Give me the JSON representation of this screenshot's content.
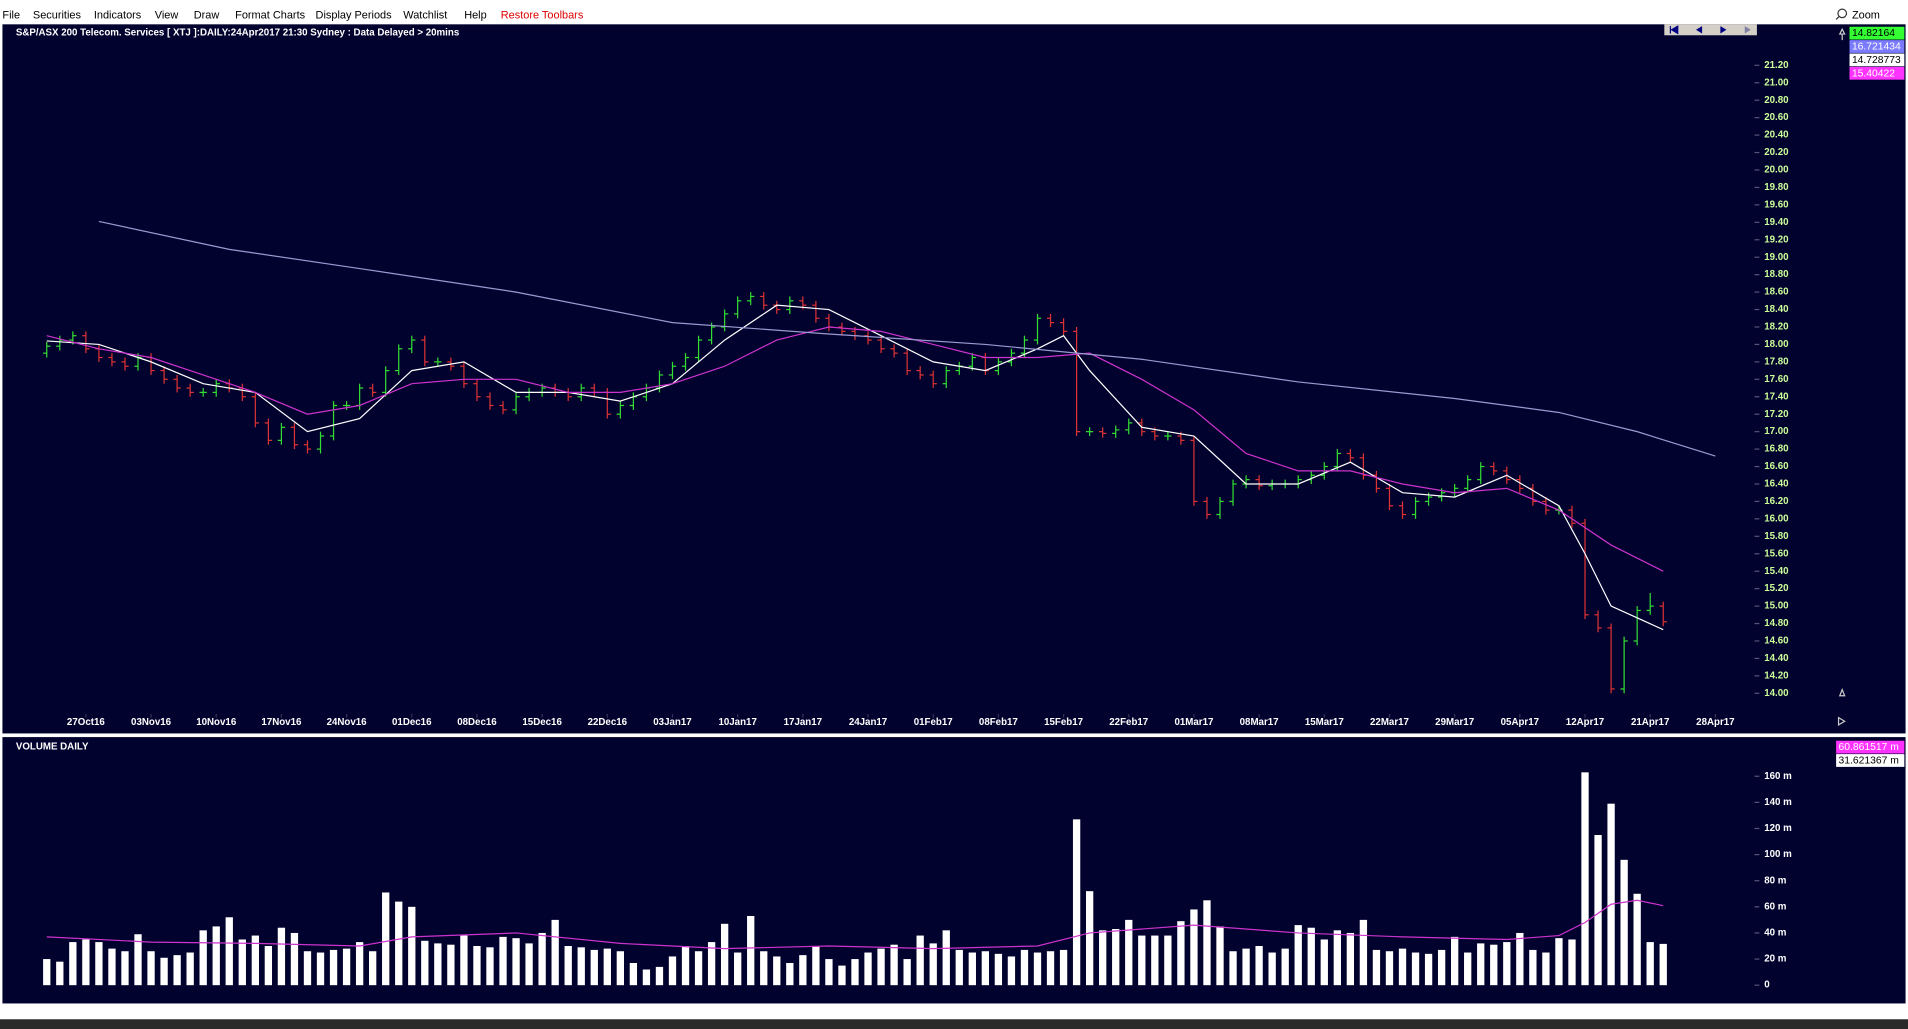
{
  "menu": [
    "File",
    "Securities",
    "Indicators",
    "View",
    "Draw",
    "Format Charts",
    "Display Periods",
    "Watchlist",
    "Help"
  ],
  "restore_toolbars": "Restore Toolbars",
  "zoom": "Zoom",
  "chart_data": [
    {
      "type": "ohlc",
      "title": "S&P/ASX 200 Telecom. Services [ XTJ ]:DAILY:24Apr2017 21:30 Sydney : Data Delayed > 20mins",
      "up_color": "#33dd33",
      "down_color": "#dd3333",
      "open": [
        17.9,
        17.98,
        18.05,
        18.1,
        17.95,
        17.85,
        17.8,
        17.75,
        17.85,
        17.7,
        17.6,
        17.5,
        17.45,
        17.45,
        17.55,
        17.5,
        17.4,
        17.1,
        16.9,
        17.05,
        16.85,
        16.8,
        16.95,
        17.3,
        17.3,
        17.5,
        17.45,
        17.7,
        17.95,
        18.05,
        17.8,
        17.8,
        17.75,
        17.55,
        17.4,
        17.3,
        17.25,
        17.4,
        17.45,
        17.5,
        17.45,
        17.4,
        17.5,
        17.45,
        17.2,
        17.3,
        17.4,
        17.5,
        17.65,
        17.75,
        17.85,
        18.05,
        18.2,
        18.35,
        18.5,
        18.55,
        18.45,
        18.4,
        18.5,
        18.45,
        18.3,
        18.2,
        18.15,
        18.1,
        18.05,
        17.95,
        17.9,
        17.7,
        17.65,
        17.55,
        17.7,
        17.75,
        17.85,
        17.7,
        17.8,
        17.9,
        18.05,
        18.3,
        18.25,
        18.15,
        17.0,
        17.0,
        16.98,
        17.02,
        17.1,
        17.0,
        16.95,
        16.95,
        16.9,
        16.2,
        16.05,
        16.2,
        16.4,
        16.45,
        16.38,
        16.4,
        16.4,
        16.45,
        16.5,
        16.6,
        16.75,
        16.7,
        16.5,
        16.35,
        16.15,
        16.05,
        16.2,
        16.25,
        16.3,
        16.35,
        16.45,
        16.6,
        16.55,
        16.45,
        16.35,
        16.2,
        16.1,
        16.1,
        15.95,
        14.9,
        14.75,
        14.05,
        14.6,
        14.95,
        15.0
      ],
      "high": [
        18.03,
        18.1,
        18.15,
        18.15,
        18.0,
        17.9,
        17.85,
        17.9,
        17.9,
        17.75,
        17.65,
        17.55,
        17.5,
        17.6,
        17.6,
        17.55,
        17.45,
        17.15,
        17.1,
        17.1,
        16.9,
        17.0,
        17.35,
        17.35,
        17.55,
        17.55,
        17.75,
        18.0,
        18.1,
        18.1,
        17.85,
        17.85,
        17.8,
        17.6,
        17.45,
        17.35,
        17.45,
        17.5,
        17.55,
        17.55,
        17.5,
        17.55,
        17.55,
        17.5,
        17.35,
        17.45,
        17.55,
        17.7,
        17.8,
        17.9,
        18.1,
        18.25,
        18.4,
        18.55,
        18.6,
        18.6,
        18.5,
        18.55,
        18.55,
        18.5,
        18.35,
        18.25,
        18.2,
        18.15,
        18.1,
        18.0,
        17.95,
        17.75,
        17.7,
        17.75,
        17.8,
        17.9,
        17.9,
        17.85,
        17.95,
        18.1,
        18.35,
        18.35,
        18.3,
        18.2,
        17.05,
        17.05,
        17.07,
        17.15,
        17.15,
        17.05,
        17.0,
        17.0,
        16.95,
        16.25,
        16.25,
        16.45,
        16.5,
        16.5,
        16.45,
        16.45,
        16.5,
        16.55,
        16.65,
        16.8,
        16.8,
        16.75,
        16.55,
        16.4,
        16.2,
        16.25,
        16.3,
        16.35,
        16.4,
        16.5,
        16.65,
        16.65,
        16.6,
        16.5,
        16.4,
        16.25,
        16.15,
        16.15,
        16.0,
        14.95,
        14.8,
        14.65,
        15.0,
        15.15,
        15.05
      ],
      "low": [
        17.85,
        17.93,
        18.0,
        17.9,
        17.8,
        17.75,
        17.7,
        17.7,
        17.65,
        17.55,
        17.45,
        17.4,
        17.4,
        17.4,
        17.45,
        17.35,
        17.05,
        16.85,
        16.85,
        16.8,
        16.75,
        16.75,
        16.9,
        17.25,
        17.25,
        17.4,
        17.4,
        17.65,
        17.9,
        17.75,
        17.75,
        17.7,
        17.5,
        17.35,
        17.25,
        17.2,
        17.2,
        17.35,
        17.4,
        17.4,
        17.35,
        17.35,
        17.4,
        17.15,
        17.15,
        17.25,
        17.35,
        17.45,
        17.6,
        17.7,
        17.8,
        18.0,
        18.15,
        18.3,
        18.45,
        18.4,
        18.35,
        18.35,
        18.4,
        18.25,
        18.15,
        18.1,
        18.05,
        18.0,
        17.9,
        17.85,
        17.65,
        17.6,
        17.5,
        17.5,
        17.65,
        17.7,
        17.65,
        17.65,
        17.75,
        17.85,
        18.0,
        18.2,
        18.1,
        16.95,
        16.95,
        16.93,
        16.93,
        16.97,
        16.95,
        16.9,
        16.9,
        16.85,
        16.15,
        16.0,
        16.0,
        16.15,
        16.35,
        16.33,
        16.33,
        16.35,
        16.35,
        16.4,
        16.45,
        16.55,
        16.65,
        16.45,
        16.3,
        16.1,
        16.0,
        16.0,
        16.15,
        16.2,
        16.25,
        16.3,
        16.4,
        16.5,
        16.4,
        16.3,
        16.15,
        16.05,
        16.05,
        15.9,
        14.85,
        14.7,
        14.0,
        14.0,
        14.55,
        14.9,
        14.77
      ],
      "close": [
        17.98,
        18.05,
        18.1,
        17.95,
        17.85,
        17.8,
        17.75,
        17.85,
        17.7,
        17.6,
        17.5,
        17.45,
        17.45,
        17.55,
        17.5,
        17.4,
        17.1,
        16.9,
        17.05,
        16.85,
        16.8,
        16.95,
        17.3,
        17.3,
        17.5,
        17.45,
        17.7,
        17.95,
        18.05,
        17.8,
        17.8,
        17.75,
        17.55,
        17.4,
        17.3,
        17.25,
        17.4,
        17.45,
        17.5,
        17.45,
        17.4,
        17.5,
        17.45,
        17.2,
        17.3,
        17.4,
        17.5,
        17.65,
        17.75,
        17.85,
        18.05,
        18.2,
        18.35,
        18.5,
        18.55,
        18.45,
        18.4,
        18.5,
        18.45,
        18.3,
        18.2,
        18.15,
        18.1,
        18.05,
        17.95,
        17.9,
        17.7,
        17.65,
        17.55,
        17.7,
        17.75,
        17.85,
        17.7,
        17.8,
        17.9,
        18.05,
        18.3,
        18.25,
        18.15,
        17.0,
        17.0,
        16.98,
        17.02,
        17.1,
        17.0,
        16.95,
        16.95,
        16.9,
        16.2,
        16.05,
        16.2,
        16.4,
        16.45,
        16.38,
        16.4,
        16.4,
        16.45,
        16.5,
        16.6,
        16.75,
        16.7,
        16.5,
        16.35,
        16.15,
        16.05,
        16.2,
        16.25,
        16.3,
        16.35,
        16.45,
        16.6,
        16.55,
        16.45,
        16.35,
        16.2,
        16.1,
        16.1,
        15.95,
        14.9,
        14.75,
        14.05,
        14.6,
        14.95,
        15.0,
        14.82
      ],
      "series": [
        {
          "color": "#ffffff",
          "x": [
            0,
            4,
            8,
            12,
            16,
            20,
            24,
            28,
            32,
            36,
            40,
            44,
            48,
            52,
            56,
            60,
            64,
            68,
            72,
            76,
            78,
            80,
            84,
            88,
            92,
            96,
            100,
            104,
            108,
            112,
            116,
            118,
            120,
            124
          ],
          "values": [
            18.04,
            18.0,
            17.8,
            17.55,
            17.45,
            17.0,
            17.15,
            17.7,
            17.8,
            17.45,
            17.45,
            17.35,
            17.55,
            18.05,
            18.45,
            18.4,
            18.1,
            17.8,
            17.7,
            17.95,
            18.1,
            17.7,
            17.05,
            16.95,
            16.4,
            16.4,
            16.65,
            16.3,
            16.25,
            16.5,
            16.15,
            15.6,
            15.0,
            14.73
          ]
        },
        {
          "color": "#cc33cc",
          "x": [
            0,
            4,
            8,
            12,
            16,
            20,
            24,
            28,
            32,
            36,
            40,
            44,
            48,
            52,
            56,
            60,
            64,
            68,
            72,
            76,
            80,
            84,
            88,
            92,
            96,
            100,
            104,
            108,
            112,
            116,
            120,
            124
          ],
          "values": [
            18.1,
            17.95,
            17.85,
            17.65,
            17.45,
            17.2,
            17.3,
            17.55,
            17.6,
            17.6,
            17.45,
            17.45,
            17.55,
            17.75,
            18.05,
            18.2,
            18.15,
            18.0,
            17.85,
            17.85,
            17.9,
            17.6,
            17.25,
            16.75,
            16.55,
            16.55,
            16.4,
            16.3,
            16.35,
            16.1,
            15.7,
            15.4
          ]
        },
        {
          "color": "#9a9ad0",
          "x": [
            4,
            14,
            24,
            36,
            48,
            60,
            72,
            84,
            96,
            108,
            116,
            122,
            128
          ],
          "values": [
            19.41,
            19.09,
            18.87,
            18.6,
            18.25,
            18.12,
            18.0,
            17.83,
            17.57,
            17.38,
            17.22,
            17.0,
            16.72
          ]
        }
      ],
      "readouts": [
        {
          "value": 14.82164,
          "color": "#33ff33",
          "text_color": "#000000"
        },
        {
          "value": 16.721434,
          "color": "#7b7bff",
          "text_color": "#ffffff"
        },
        {
          "value": 14.728773,
          "color": "#ffffff",
          "text_color": "#000000"
        },
        {
          "value": 15.40422,
          "color": "#ff33ff",
          "text_color": "#ffffff"
        }
      ],
      "xlim": [
        -3.4,
        131
      ],
      "ylim": [
        13.54,
        21.67
      ],
      "xticks": [
        {
          "value": 3,
          "label": "27Oct16"
        },
        {
          "value": 8,
          "label": "03Nov16"
        },
        {
          "value": 13,
          "label": "10Nov16"
        },
        {
          "value": 18,
          "label": "17Nov16"
        },
        {
          "value": 23,
          "label": "24Nov16"
        },
        {
          "value": 28,
          "label": "01Dec16"
        },
        {
          "value": 33,
          "label": "08Dec16"
        },
        {
          "value": 38,
          "label": "15Dec16"
        },
        {
          "value": 43,
          "label": "22Dec16"
        },
        {
          "value": 48,
          "label": "03Jan17"
        },
        {
          "value": 53,
          "label": "10Jan17"
        },
        {
          "value": 58,
          "label": "17Jan17"
        },
        {
          "value": 63,
          "label": "24Jan17"
        },
        {
          "value": 68,
          "label": "01Feb17"
        },
        {
          "value": 73,
          "label": "08Feb17"
        },
        {
          "value": 78,
          "label": "15Feb17"
        },
        {
          "value": 83,
          "label": "22Feb17"
        },
        {
          "value": 88,
          "label": "01Mar17"
        },
        {
          "value": 93,
          "label": "08Mar17"
        },
        {
          "value": 98,
          "label": "15Mar17"
        },
        {
          "value": 103,
          "label": "22Mar17"
        },
        {
          "value": 108,
          "label": "29Mar17"
        },
        {
          "value": 113,
          "label": "05Apr17"
        },
        {
          "value": 118,
          "label": "12Apr17"
        },
        {
          "value": 123,
          "label": "21Apr17"
        },
        {
          "value": 128,
          "label": "28Apr17"
        }
      ],
      "yticks": [
        {
          "value": 14,
          "label": "14.00"
        },
        {
          "value": 14.2,
          "label": "14.20"
        },
        {
          "value": 14.4,
          "label": "14.40"
        },
        {
          "value": 14.6,
          "label": "14.60"
        },
        {
          "value": 14.8,
          "label": "14.80"
        },
        {
          "value": 15,
          "label": "15.00"
        },
        {
          "value": 15.2,
          "label": "15.20"
        },
        {
          "value": 15.4,
          "label": "15.40"
        },
        {
          "value": 15.6,
          "label": "15.60"
        },
        {
          "value": 15.8,
          "label": "15.80"
        },
        {
          "value": 16,
          "label": "16.00"
        },
        {
          "value": 16.2,
          "label": "16.20"
        },
        {
          "value": 16.4,
          "label": "16.40"
        },
        {
          "value": 16.6,
          "label": "16.60"
        },
        {
          "value": 16.8,
          "label": "16.80"
        },
        {
          "value": 17,
          "label": "17.00"
        },
        {
          "value": 17.2,
          "label": "17.20"
        },
        {
          "value": 17.4,
          "label": "17.40"
        },
        {
          "value": 17.6,
          "label": "17.60"
        },
        {
          "value": 17.8,
          "label": "17.80"
        },
        {
          "value": 18,
          "label": "18.00"
        },
        {
          "value": 18.2,
          "label": "18.20"
        },
        {
          "value": 18.4,
          "label": "18.40"
        },
        {
          "value": 18.6,
          "label": "18.60"
        },
        {
          "value": 18.8,
          "label": "18.80"
        },
        {
          "value": 19,
          "label": "19.00"
        },
        {
          "value": 19.2,
          "label": "19.20"
        },
        {
          "value": 19.4,
          "label": "19.40"
        },
        {
          "value": 19.6,
          "label": "19.60"
        },
        {
          "value": 19.8,
          "label": "19.80"
        },
        {
          "value": 20,
          "label": "20.00"
        },
        {
          "value": 20.2,
          "label": "20.20"
        },
        {
          "value": 20.4,
          "label": "20.40"
        },
        {
          "value": 20.6,
          "label": "20.60"
        },
        {
          "value": 20.8,
          "label": "20.80"
        },
        {
          "value": 21,
          "label": "21.00"
        },
        {
          "value": 21.2,
          "label": "21.20"
        }
      ]
    },
    {
      "type": "bar",
      "title": "VOLUME DAILY",
      "color": "#ffffff",
      "values": [
        20,
        18,
        33,
        35,
        33,
        28,
        26,
        39,
        26,
        21,
        23,
        25,
        42,
        45,
        52,
        35,
        38,
        30,
        44,
        40,
        26,
        25,
        27,
        28,
        33,
        26,
        71,
        64,
        60,
        34,
        32,
        31,
        38,
        30,
        29,
        37,
        36,
        32,
        40,
        50,
        30,
        29,
        27,
        28,
        26,
        17,
        12,
        14,
        22,
        30,
        26,
        33,
        47,
        25,
        53,
        26,
        22,
        17,
        23,
        30,
        20,
        15,
        20,
        25,
        28,
        31,
        20,
        38,
        32,
        42,
        27,
        25,
        26,
        24,
        22,
        27,
        25,
        26,
        27,
        127,
        72,
        42,
        43,
        50,
        38,
        38,
        38,
        49,
        58,
        65,
        45,
        26,
        28,
        30,
        25,
        28,
        46,
        44,
        35,
        42,
        40,
        50,
        27,
        26,
        28,
        25,
        24,
        27,
        37,
        25,
        32,
        31,
        33,
        40,
        27,
        25,
        36,
        35,
        163,
        115,
        139,
        96,
        70,
        33,
        31.621367
      ],
      "series": [
        {
          "color": "#cc33cc",
          "x": [
            0,
            8,
            16,
            24,
            28,
            36,
            44,
            52,
            60,
            68,
            76,
            80,
            88,
            96,
            104,
            112,
            116,
            118,
            120,
            122,
            124
          ],
          "values": [
            37,
            33,
            32,
            30,
            37,
            40,
            32,
            28,
            30,
            28,
            30,
            40,
            46,
            40,
            37,
            35,
            38,
            48,
            62,
            65,
            60.861517
          ]
        }
      ],
      "readouts": [
        {
          "value": 60.861517,
          "label": "60.861517 m",
          "color": "#ff33ff",
          "text_color": "#ffffff"
        },
        {
          "value": 31.621367,
          "label": "31.621367 m",
          "color": "#ffffff",
          "text_color": "#000000"
        }
      ],
      "xlim": [
        -3.4,
        131
      ],
      "ylim": [
        -14,
        190
      ],
      "yticks": [
        0,
        {
          "value": 20,
          "label": "20 m"
        },
        {
          "value": 40,
          "label": "40 m"
        },
        {
          "value": 60,
          "label": "60 m"
        },
        {
          "value": 80,
          "label": "80 m"
        },
        {
          "value": 100,
          "label": "100 m"
        },
        {
          "value": 120,
          "label": "120 m"
        },
        {
          "value": 140,
          "label": "140 m"
        },
        {
          "value": 160,
          "label": "160 m"
        }
      ]
    }
  ]
}
